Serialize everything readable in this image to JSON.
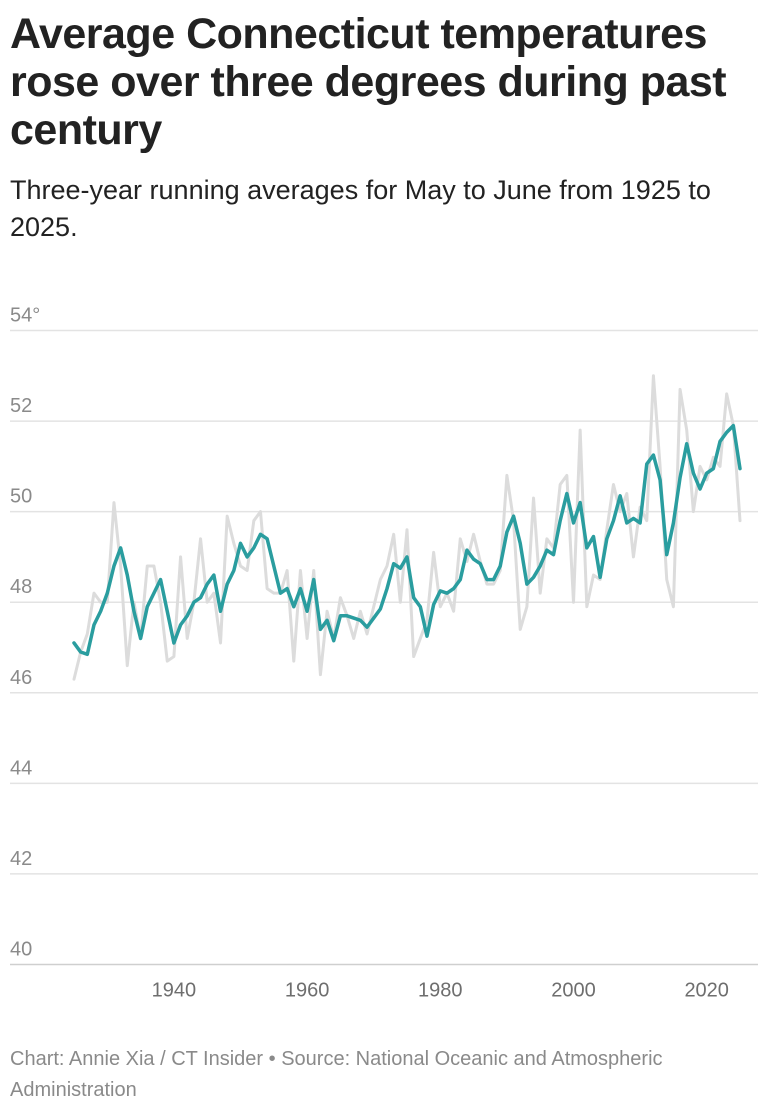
{
  "title": "Average Connecticut temperatures rose over three degrees during past century",
  "subtitle": "Three-year running averages for May to June from 1925 to 2025.",
  "footer": "Chart: Annie Xia / CT Insider • Source: National Oceanic and Atmospheric Administration",
  "colors": {
    "annual": "#dcdcdc",
    "running_average": "#2a9d9f",
    "grid": "#e3e3e3",
    "axis": "#cfcfcf"
  },
  "chart_data": {
    "type": "line",
    "title": "Average Connecticut temperatures rose over three degrees during past century",
    "xlabel": "",
    "ylabel": "",
    "xlim": [
      1925,
      2025
    ],
    "ylim": [
      40,
      54
    ],
    "y_ticks": [
      40,
      42,
      44,
      46,
      48,
      50,
      52,
      54
    ],
    "y_tick_labels": [
      "40",
      "42",
      "44",
      "46",
      "48",
      "50",
      "52",
      "54°"
    ],
    "x_ticks": [
      1940,
      1960,
      1980,
      2000,
      2020
    ],
    "x_tick_labels": [
      "1940",
      "1960",
      "1980",
      "2000",
      "2020"
    ],
    "grid": true,
    "legend": "none",
    "series": [
      {
        "color": "#dcdcdc",
        "x": [
          1925,
          1926,
          1927,
          1928,
          1929,
          1930,
          1931,
          1932,
          1933,
          1934,
          1935,
          1936,
          1937,
          1938,
          1939,
          1940,
          1941,
          1942,
          1943,
          1944,
          1945,
          1946,
          1947,
          1948,
          1949,
          1950,
          1951,
          1952,
          1953,
          1954,
          1955,
          1956,
          1957,
          1958,
          1959,
          1960,
          1961,
          1962,
          1963,
          1964,
          1965,
          1966,
          1967,
          1968,
          1969,
          1970,
          1971,
          1972,
          1973,
          1974,
          1975,
          1976,
          1977,
          1978,
          1979,
          1980,
          1981,
          1982,
          1983,
          1984,
          1985,
          1986,
          1987,
          1988,
          1989,
          1990,
          1991,
          1992,
          1993,
          1994,
          1995,
          1996,
          1997,
          1998,
          1999,
          2000,
          2001,
          2002,
          2003,
          2004,
          2005,
          2006,
          2007,
          2008,
          2009,
          2010,
          2011,
          2012,
          2013,
          2014,
          2015,
          2016,
          2017,
          2018,
          2019,
          2020,
          2021,
          2022,
          2023,
          2024,
          2025
        ],
        "values": [
          46.3,
          46.9,
          47.3,
          48.2,
          48.0,
          48.0,
          50.2,
          48.8,
          46.6,
          48.0,
          47.2,
          48.8,
          48.8,
          48.0,
          46.7,
          46.8,
          49.0,
          47.2,
          48.0,
          49.4,
          48.0,
          48.2,
          47.1,
          49.9,
          49.3,
          48.8,
          48.7,
          49.8,
          50.0,
          48.3,
          48.2,
          48.2,
          48.7,
          46.7,
          48.7,
          47.2,
          48.7,
          46.4,
          47.8,
          47.2,
          48.1,
          47.7,
          47.2,
          47.8,
          47.3,
          47.9,
          48.5,
          48.8,
          49.5,
          48.0,
          49.6,
          46.8,
          47.2,
          47.6,
          49.1,
          47.9,
          48.2,
          47.8,
          49.4,
          48.9,
          49.5,
          48.9,
          48.4,
          48.4,
          48.7,
          50.8,
          49.8,
          47.4,
          47.9,
          50.3,
          48.2,
          49.4,
          49.2,
          50.6,
          50.8,
          48.0,
          51.8,
          47.9,
          48.6,
          48.5,
          49.6,
          50.6,
          50.0,
          50.4,
          49.0,
          50.1,
          49.8,
          53.0,
          51.0,
          48.5,
          47.9,
          52.7,
          51.8,
          50.0,
          51.0,
          50.7,
          51.2,
          51.0,
          52.6,
          51.9,
          49.8
        ]
      },
      {
        "color": "#2a9d9f",
        "x": [
          1925,
          1926,
          1927,
          1928,
          1929,
          1930,
          1931,
          1932,
          1933,
          1934,
          1935,
          1936,
          1937,
          1938,
          1939,
          1940,
          1941,
          1942,
          1943,
          1944,
          1945,
          1946,
          1947,
          1948,
          1949,
          1950,
          1951,
          1952,
          1953,
          1954,
          1955,
          1956,
          1957,
          1958,
          1959,
          1960,
          1961,
          1962,
          1963,
          1964,
          1965,
          1966,
          1967,
          1968,
          1969,
          1970,
          1971,
          1972,
          1973,
          1974,
          1975,
          1976,
          1977,
          1978,
          1979,
          1980,
          1981,
          1982,
          1983,
          1984,
          1985,
          1986,
          1987,
          1988,
          1989,
          1990,
          1991,
          1992,
          1993,
          1994,
          1995,
          1996,
          1997,
          1998,
          1999,
          2000,
          2001,
          2002,
          2003,
          2004,
          2005,
          2006,
          2007,
          2008,
          2009,
          2010,
          2011,
          2012,
          2013,
          2014,
          2015,
          2016,
          2017,
          2018,
          2019,
          2020,
          2021,
          2022,
          2023,
          2024,
          2025
        ],
        "values": [
          47.1,
          46.9,
          46.85,
          47.5,
          47.8,
          48.2,
          48.8,
          49.2,
          48.6,
          47.8,
          47.2,
          47.9,
          48.2,
          48.5,
          47.8,
          47.1,
          47.5,
          47.7,
          48.0,
          48.1,
          48.4,
          48.6,
          47.8,
          48.4,
          48.7,
          49.3,
          49.0,
          49.2,
          49.5,
          49.4,
          48.8,
          48.2,
          48.3,
          47.9,
          48.3,
          47.8,
          48.5,
          47.4,
          47.6,
          47.15,
          47.7,
          47.7,
          47.65,
          47.6,
          47.45,
          47.65,
          47.85,
          48.3,
          48.85,
          48.75,
          49.0,
          48.1,
          47.9,
          47.25,
          47.95,
          48.25,
          48.2,
          48.3,
          48.5,
          49.15,
          48.95,
          48.85,
          48.5,
          48.5,
          48.8,
          49.55,
          49.9,
          49.3,
          48.4,
          48.55,
          48.8,
          49.15,
          49.05,
          49.8,
          50.4,
          49.75,
          50.2,
          49.2,
          49.45,
          48.55,
          49.4,
          49.8,
          50.35,
          49.75,
          49.85,
          49.75,
          51.05,
          51.25,
          50.7,
          49.05,
          49.75,
          50.75,
          51.5,
          50.85,
          50.5,
          50.85,
          50.95,
          51.55,
          51.75,
          51.9,
          50.95
        ]
      }
    ]
  }
}
